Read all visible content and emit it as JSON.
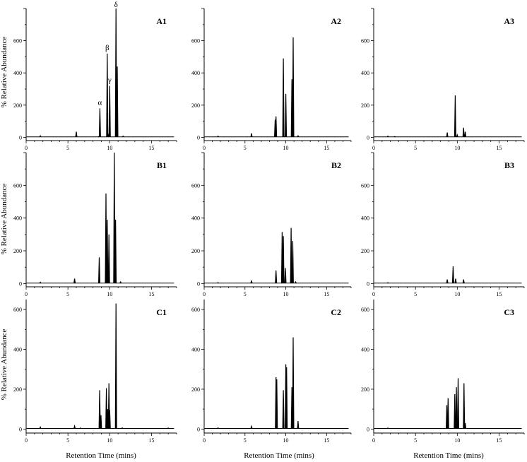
{
  "figure": {
    "ylabel": "% Relative Abundance",
    "xlabel": "Retention Time (mins)",
    "colors": {
      "line": "#000000",
      "background": "#ffffff"
    }
  },
  "chart_data": [
    {
      "panel": "A1",
      "type": "line",
      "xlim": [
        0,
        18
      ],
      "ylim": [
        -20,
        800
      ],
      "xticks": [
        "0",
        "5",
        "10",
        "15"
      ],
      "yticks": [
        "0",
        "200",
        "400",
        "600"
      ],
      "peaks": [
        [
          1.7,
          10
        ],
        [
          6,
          35
        ],
        [
          8.7,
          5
        ],
        [
          8.82,
          180
        ],
        [
          9.7,
          520
        ],
        [
          9.85,
          15
        ],
        [
          10.0,
          320
        ],
        [
          10.75,
          800
        ],
        [
          10.9,
          440
        ],
        [
          11.6,
          8
        ]
      ],
      "annotations": [
        {
          "text": "α",
          "x": 8.82,
          "y": 180
        },
        {
          "text": "β",
          "x": 9.7,
          "y": 520
        },
        {
          "text": "γ",
          "x": 10.0,
          "y": 320
        },
        {
          "text": "δ",
          "x": 10.75,
          "y": 800
        }
      ]
    },
    {
      "panel": "A2",
      "type": "line",
      "xlim": [
        0,
        18
      ],
      "ylim": [
        -20,
        800
      ],
      "xticks": [
        "0",
        "5",
        "10",
        "15"
      ],
      "yticks": [
        "0",
        "200",
        "400",
        "600"
      ],
      "peaks": [
        [
          1.7,
          8
        ],
        [
          5.8,
          25
        ],
        [
          8.7,
          110
        ],
        [
          8.8,
          130
        ],
        [
          9.7,
          490
        ],
        [
          10.0,
          270
        ],
        [
          10.75,
          360
        ],
        [
          10.9,
          620
        ],
        [
          11.5,
          10
        ]
      ],
      "annotations": []
    },
    {
      "panel": "A3",
      "type": "line",
      "xlim": [
        0,
        18
      ],
      "ylim": [
        -20,
        800
      ],
      "xticks": [
        "0",
        "5",
        "10",
        "15"
      ],
      "yticks": [
        "0",
        "200",
        "400",
        "600"
      ],
      "peaks": [
        [
          1.7,
          8
        ],
        [
          2.5,
          5
        ],
        [
          8.8,
          30
        ],
        [
          9.75,
          260
        ],
        [
          10.0,
          15
        ],
        [
          10.75,
          60
        ],
        [
          10.95,
          35
        ]
      ],
      "annotations": []
    },
    {
      "panel": "B1",
      "type": "line",
      "xlim": [
        0,
        18
      ],
      "ylim": [
        -20,
        800
      ],
      "xticks": [
        "0",
        "5",
        "10",
        "15"
      ],
      "yticks": [
        "0",
        "200",
        "400",
        "600"
      ],
      "peaks": [
        [
          1.7,
          8
        ],
        [
          5.8,
          30
        ],
        [
          8.75,
          160
        ],
        [
          9.55,
          550
        ],
        [
          9.7,
          390
        ],
        [
          9.9,
          300
        ],
        [
          10.55,
          800
        ],
        [
          10.7,
          390
        ],
        [
          11.3,
          10
        ]
      ],
      "annotations": []
    },
    {
      "panel": "B2",
      "type": "line",
      "xlim": [
        0,
        18
      ],
      "ylim": [
        -20,
        800
      ],
      "xticks": [
        "0",
        "5",
        "10",
        "15"
      ],
      "yticks": [
        "0",
        "200",
        "400",
        "600"
      ],
      "peaks": [
        [
          1.7,
          6
        ],
        [
          5.8,
          18
        ],
        [
          8.8,
          80
        ],
        [
          9.55,
          315
        ],
        [
          9.7,
          290
        ],
        [
          9.95,
          95
        ],
        [
          10.65,
          340
        ],
        [
          10.85,
          260
        ],
        [
          11.2,
          10
        ]
      ],
      "annotations": []
    },
    {
      "panel": "B3",
      "type": "line",
      "xlim": [
        0,
        18
      ],
      "ylim": [
        -20,
        800
      ],
      "xticks": [
        "0",
        "5",
        "10",
        "15"
      ],
      "yticks": [
        "0",
        "200",
        "400",
        "600"
      ],
      "peaks": [
        [
          1.7,
          5
        ],
        [
          8.8,
          25
        ],
        [
          9.5,
          105
        ],
        [
          9.8,
          30
        ],
        [
          10.75,
          25
        ]
      ],
      "annotations": []
    },
    {
      "panel": "C1",
      "type": "line",
      "xlim": [
        0,
        18
      ],
      "ylim": [
        -20,
        650
      ],
      "xticks": [
        "0",
        "5",
        "10",
        "15"
      ],
      "yticks": [
        "0",
        "200",
        "400",
        "600"
      ],
      "peaks": [
        [
          1.7,
          10
        ],
        [
          5.8,
          15
        ],
        [
          6.5,
          5
        ],
        [
          8.8,
          195
        ],
        [
          8.95,
          70
        ],
        [
          9.6,
          205
        ],
        [
          9.75,
          100
        ],
        [
          9.9,
          230
        ],
        [
          10.0,
          95
        ],
        [
          10.75,
          630
        ],
        [
          11.5,
          6
        ],
        [
          17.0,
          5
        ]
      ],
      "annotations": []
    },
    {
      "panel": "C2",
      "type": "line",
      "xlim": [
        0,
        18
      ],
      "ylim": [
        -20,
        650
      ],
      "xticks": [
        "0",
        "5",
        "10",
        "15"
      ],
      "yticks": [
        "0",
        "200",
        "400",
        "600"
      ],
      "peaks": [
        [
          1.7,
          6
        ],
        [
          5.8,
          14
        ],
        [
          8.8,
          260
        ],
        [
          8.9,
          250
        ],
        [
          9.7,
          195
        ],
        [
          10.0,
          325
        ],
        [
          10.1,
          310
        ],
        [
          10.75,
          210
        ],
        [
          10.9,
          460
        ],
        [
          11.5,
          40
        ]
      ],
      "annotations": []
    },
    {
      "panel": "C3",
      "type": "line",
      "xlim": [
        0,
        18
      ],
      "ylim": [
        -20,
        650
      ],
      "xticks": [
        "0",
        "5",
        "10",
        "15"
      ],
      "yticks": [
        "0",
        "200",
        "400",
        "600"
      ],
      "peaks": [
        [
          1.7,
          5
        ],
        [
          8.75,
          120
        ],
        [
          8.9,
          155
        ],
        [
          9.7,
          175
        ],
        [
          9.9,
          210
        ],
        [
          10.1,
          255
        ],
        [
          10.8,
          230
        ],
        [
          10.95,
          30
        ]
      ],
      "annotations": []
    }
  ]
}
